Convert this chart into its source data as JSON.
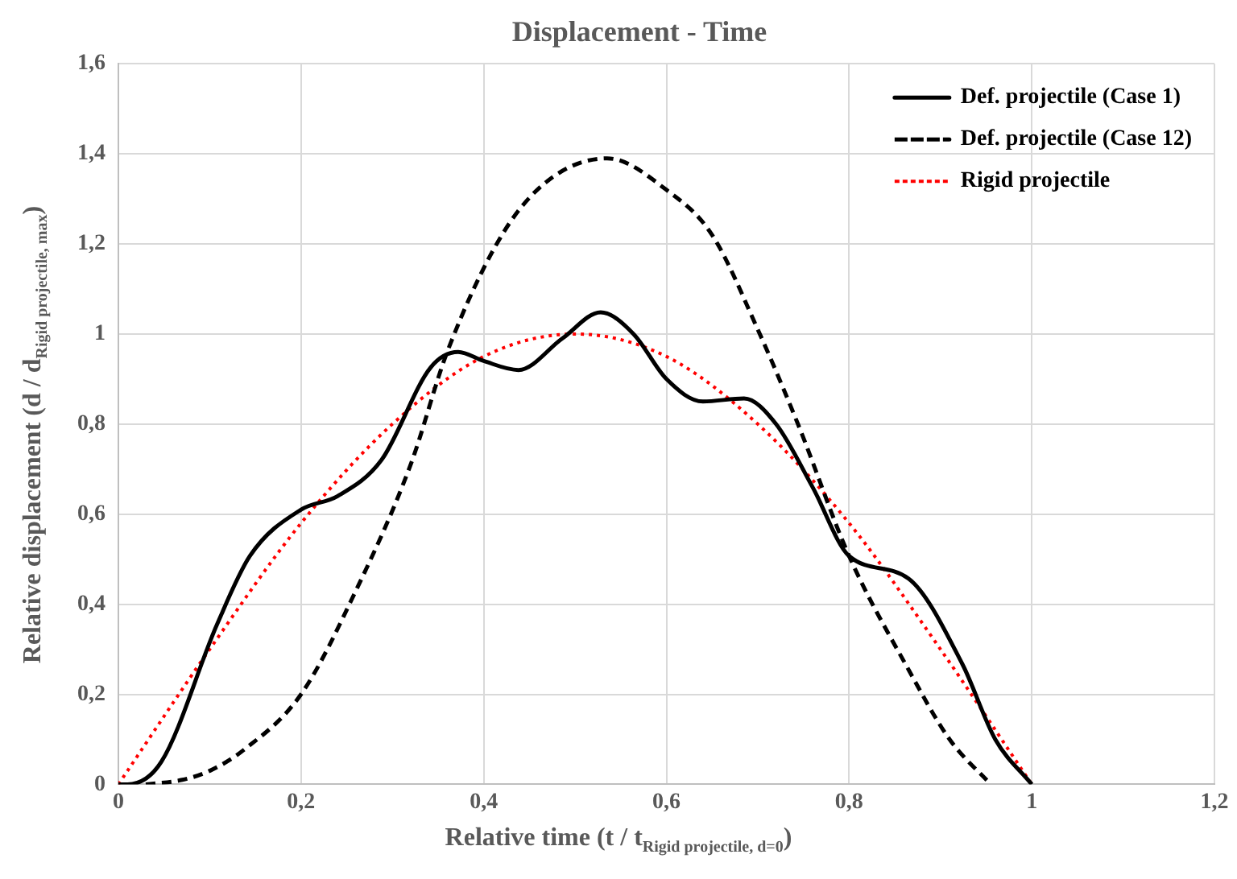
{
  "chart_data": {
    "type": "line",
    "title": "Displacement - Time",
    "xlabel": "Relative time (t / t$_{Rigid projectile, d=0}$)",
    "ylabel": "Relative displacement (d / d$_{Rigid projectile, max}$)",
    "xlim": [
      0,
      1.2
    ],
    "xticks": [
      0,
      {
        "value": 0.2,
        "label": "0,2"
      },
      {
        "value": 0.4,
        "label": "0,4"
      },
      {
        "value": 0.6,
        "label": "0,6"
      },
      {
        "value": 0.8,
        "label": "0,8"
      },
      1,
      {
        "value": 1.2,
        "label": "1,2"
      }
    ],
    "ylim": [
      0,
      1.6
    ],
    "yticks": [
      0,
      {
        "value": 0.2,
        "label": "0,2"
      },
      {
        "value": 0.4,
        "label": "0,4"
      },
      {
        "value": 0.6,
        "label": "0,6"
      },
      {
        "value": 0.8,
        "label": "0,8"
      },
      1,
      {
        "value": 1.2,
        "label": "1,2"
      },
      {
        "value": 1.4,
        "label": "1,4"
      },
      {
        "value": 1.6,
        "label": "1,6"
      }
    ],
    "grid": true,
    "legend": "top right",
    "marker": "none",
    "series": [
      {
        "name": "Def. projectile (Case 1)",
        "color": "#000000",
        "line_style": "solid",
        "x": [
          0,
          0.01,
          0.047,
          0.108,
          0.144,
          0.2,
          0.24,
          0.288,
          0.342,
          0.372,
          0.4,
          0.438,
          0.486,
          0.528,
          0.564,
          0.6,
          0.64,
          0.685,
          0.72,
          0.76,
          0.8,
          0.865,
          0.924,
          0.96,
          1.0
        ],
        "values": [
          0,
          0,
          0.05,
          0.355,
          0.507,
          0.61,
          0.64,
          0.72,
          0.926,
          0.96,
          0.94,
          0.92,
          0.99,
          1.048,
          1.0,
          0.9,
          0.85,
          0.857,
          0.8,
          0.66,
          0.507,
          0.457,
          0.267,
          0.1,
          0
        ]
      },
      {
        "name": "Def. projectile (Case 12)",
        "color": "#000000",
        "line_style": "dashed",
        "x": [
          0.03,
          0.07,
          0.1,
          0.137,
          0.2,
          0.26,
          0.32,
          0.36,
          0.42,
          0.47,
          0.535,
          0.6,
          0.65,
          0.7,
          0.744,
          0.8,
          0.865,
          0.91,
          0.955
        ],
        "values": [
          0,
          0.01,
          0.03,
          0.076,
          0.2,
          0.43,
          0.71,
          0.96,
          1.22,
          1.34,
          1.39,
          1.32,
          1.22,
          1.01,
          0.8,
          0.507,
          0.255,
          0.1,
          0
        ]
      },
      {
        "name": "Rigid projectile",
        "color": "#ff0000",
        "line_style": "dotted",
        "x": [
          0,
          0.1,
          0.2,
          0.3,
          0.4,
          0.5,
          0.6,
          0.7,
          0.8,
          0.9,
          1.0
        ],
        "values": [
          0,
          0.3,
          0.58,
          0.8,
          0.95,
          1.0,
          0.95,
          0.8,
          0.58,
          0.3,
          0
        ]
      }
    ]
  }
}
